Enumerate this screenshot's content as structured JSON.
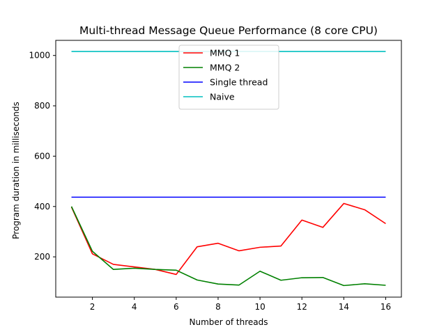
{
  "chart_data": {
    "type": "line",
    "title": "Multi-thread Message Queue Performance (8 core CPU)",
    "xlabel": "Number of threads",
    "ylabel": "Program duration in milliseconds",
    "xlim": [
      0.25,
      16.75
    ],
    "ylim": [
      40,
      1060
    ],
    "xticks": [
      2,
      4,
      6,
      8,
      10,
      12,
      14,
      16
    ],
    "yticks": [
      200,
      400,
      600,
      800,
      1000
    ],
    "grid": false,
    "legend_position": "top-center",
    "x": [
      1,
      2,
      3,
      4,
      5,
      6,
      7,
      8,
      9,
      10,
      11,
      12,
      13,
      14,
      15,
      16
    ],
    "series": [
      {
        "name": "MMQ 1",
        "color": "#ff0000",
        "values": [
          398,
          212,
          170,
          160,
          150,
          130,
          240,
          254,
          224,
          238,
          243,
          346,
          317,
          412,
          387,
          332
        ]
      },
      {
        "name": "MMQ 2",
        "color": "#008000",
        "values": [
          400,
          222,
          150,
          155,
          150,
          147,
          108,
          92,
          88,
          143,
          107,
          117,
          118,
          86,
          93,
          87
        ]
      },
      {
        "name": "Single thread",
        "color": "#0000ff",
        "values": [
          437,
          437,
          437,
          437,
          437,
          437,
          437,
          437,
          437,
          437,
          437,
          437,
          437,
          437,
          437,
          437
        ]
      },
      {
        "name": "Naive",
        "color": "#00bfbf",
        "values": [
          1016,
          1016,
          1016,
          1016,
          1016,
          1016,
          1016,
          1016,
          1016,
          1016,
          1016,
          1016,
          1016,
          1016,
          1016,
          1016
        ]
      }
    ]
  }
}
